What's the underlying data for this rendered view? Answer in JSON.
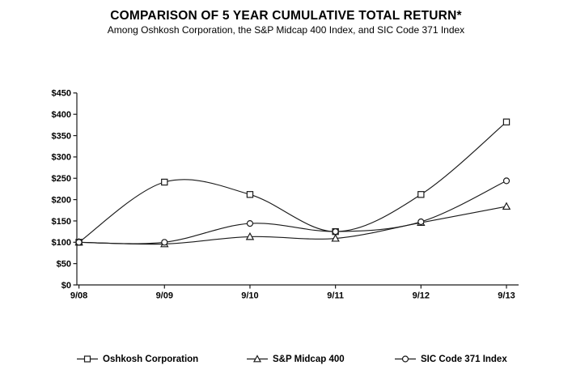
{
  "chart_data": {
    "type": "line",
    "title": "COMPARISON OF 5 YEAR CUMULATIVE TOTAL RETURN*",
    "subtitle": "Among Oshkosh Corporation, the S&P Midcap 400 Index, and SIC Code 371 Index",
    "categories": [
      "9/08",
      "9/09",
      "9/10",
      "9/11",
      "9/12",
      "9/13"
    ],
    "series": [
      {
        "name": "Oshkosh Corporation",
        "marker": "square",
        "values": [
          100,
          241,
          212,
          125,
          212,
          382
        ]
      },
      {
        "name": "S&P Midcap 400",
        "marker": "triangle",
        "values": [
          100,
          96,
          113,
          109,
          146,
          184
        ]
      },
      {
        "name": "SIC Code 371 Index",
        "marker": "circle",
        "values": [
          100,
          100,
          144,
          125,
          148,
          244
        ]
      }
    ],
    "xlabel": "",
    "ylabel": "",
    "ylim": [
      0,
      450
    ],
    "y_tick_step": 50,
    "y_tick_labels": [
      "$0",
      "$50",
      "$100",
      "$150",
      "$200",
      "$250",
      "$300",
      "$350",
      "$400",
      "$450"
    ],
    "grid": false,
    "smoothed_lines": true,
    "legend_position": "bottom",
    "colors": {
      "line": "#1a1a1a",
      "marker_fill": "#ffffff",
      "text": "#000000",
      "background": "#ffffff"
    }
  }
}
